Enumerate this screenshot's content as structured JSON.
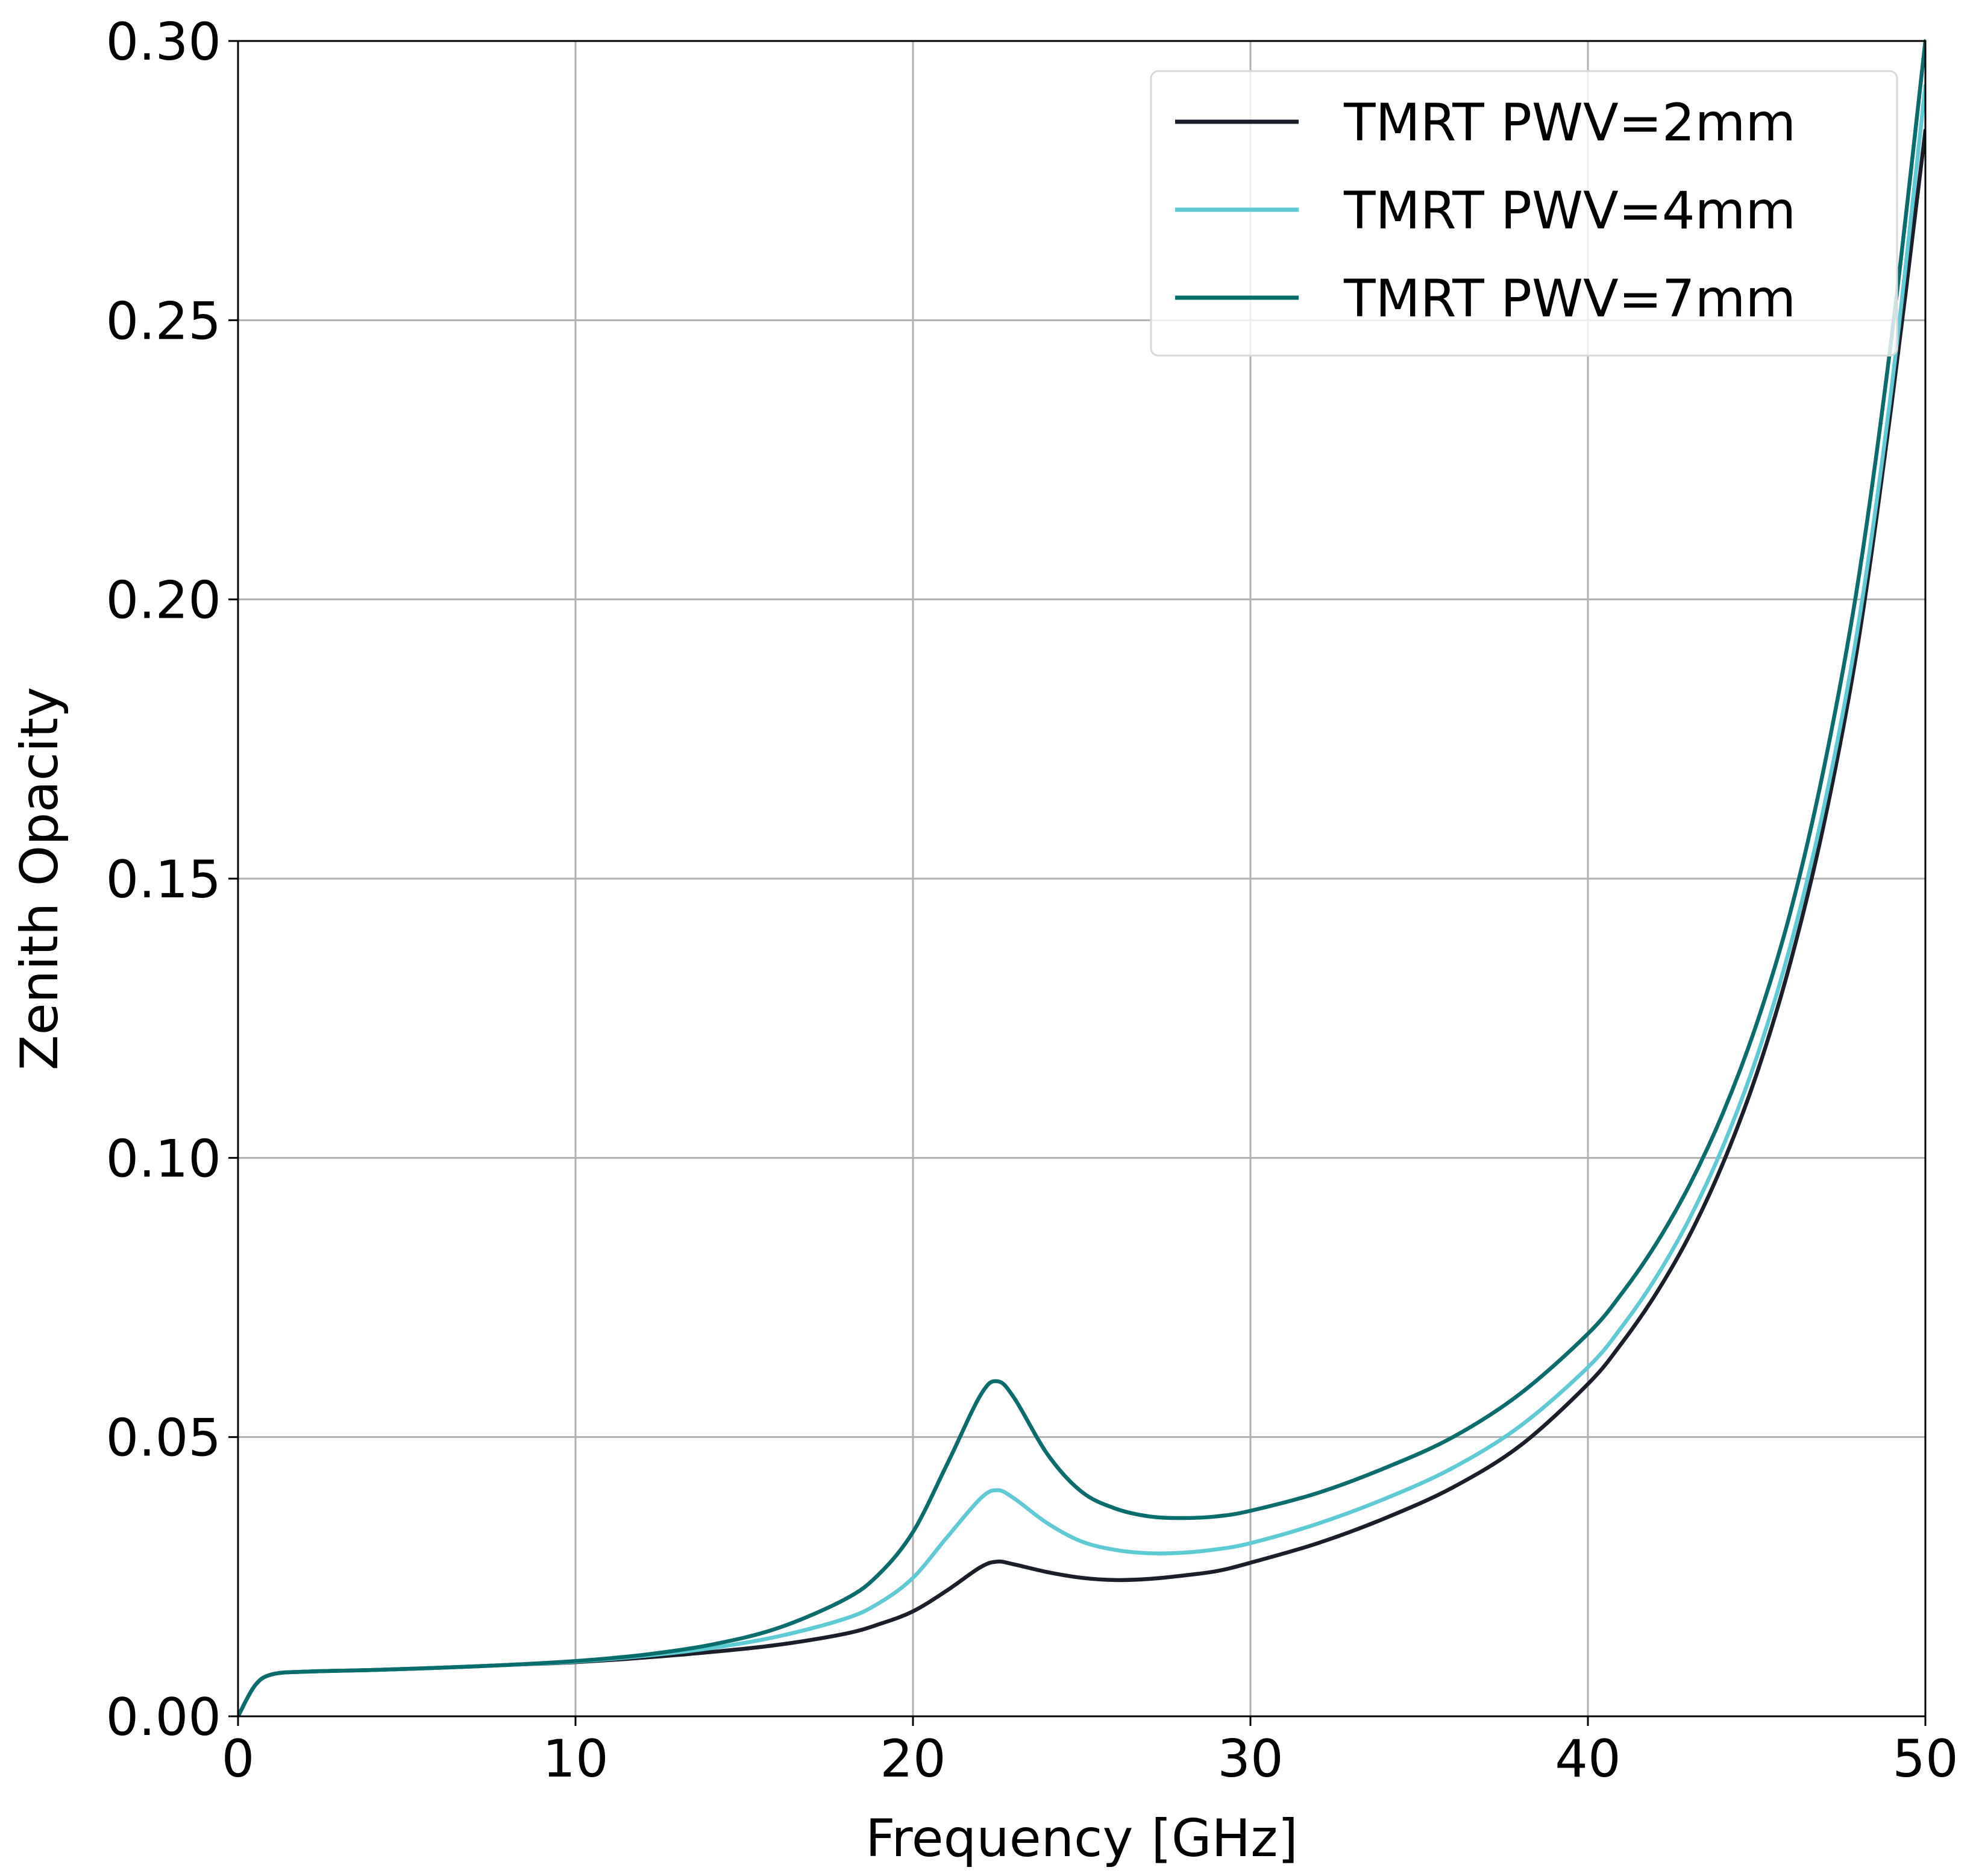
{
  "chart_data": {
    "type": "line",
    "title": "",
    "xlabel": "Frequency",
    "xlabel_unit": "[GHz]",
    "ylabel": "Zenith Opacity",
    "xlim": [
      0,
      50
    ],
    "ylim": [
      0,
      0.3
    ],
    "xticks": [
      "0",
      "10",
      "20",
      "30",
      "40",
      "50"
    ],
    "yticks": [
      "0.00",
      "0.05",
      "0.10",
      "0.15",
      "0.20",
      "0.25",
      "0.30"
    ],
    "grid": true,
    "legend_position": "top-right",
    "series": [
      {
        "name": "TMRT PWV=2mm",
        "color": "#1a1f2a",
        "x": [
          0,
          0.5,
          1,
          2,
          4,
          6,
          8,
          10,
          12,
          14,
          16,
          18,
          19,
          20,
          21,
          22,
          22.5,
          23,
          24,
          25,
          26,
          27,
          28,
          29,
          30,
          32,
          34,
          36,
          38,
          40,
          41,
          42,
          43,
          44,
          45,
          46,
          47,
          48,
          49,
          50
        ],
        "values": [
          0,
          0.0055,
          0.0075,
          0.008,
          0.0083,
          0.0087,
          0.0092,
          0.0097,
          0.0105,
          0.0115,
          0.0128,
          0.0148,
          0.0165,
          0.0188,
          0.0225,
          0.0267,
          0.0277,
          0.0272,
          0.0258,
          0.0248,
          0.0244,
          0.0246,
          0.0252,
          0.026,
          0.0275,
          0.031,
          0.0355,
          0.041,
          0.0485,
          0.0595,
          0.0668,
          0.0755,
          0.086,
          0.099,
          0.115,
          0.135,
          0.16,
          0.192,
          0.235,
          0.284
        ]
      },
      {
        "name": "TMRT PWV=4mm",
        "color": "#5ecad6",
        "x": [
          0,
          0.5,
          1,
          2,
          4,
          6,
          8,
          10,
          12,
          14,
          16,
          18,
          19,
          20,
          21,
          22,
          22.5,
          23,
          24,
          25,
          26,
          27,
          28,
          29,
          30,
          32,
          34,
          36,
          38,
          40,
          41,
          42,
          43,
          44,
          45,
          46,
          47,
          48,
          49,
          50
        ],
        "values": [
          0,
          0.0055,
          0.0075,
          0.008,
          0.0083,
          0.0087,
          0.0092,
          0.0098,
          0.0108,
          0.0122,
          0.0143,
          0.0175,
          0.0203,
          0.0248,
          0.032,
          0.039,
          0.0405,
          0.039,
          0.0345,
          0.0313,
          0.0298,
          0.0292,
          0.0293,
          0.0299,
          0.031,
          0.0345,
          0.039,
          0.0445,
          0.052,
          0.0625,
          0.0697,
          0.0784,
          0.089,
          0.102,
          0.118,
          0.138,
          0.163,
          0.195,
          0.238,
          0.292
        ]
      },
      {
        "name": "TMRT PWV=7mm",
        "color": "#0a6d6d",
        "x": [
          0,
          0.5,
          1,
          2,
          4,
          6,
          8,
          10,
          12,
          14,
          16,
          18,
          19,
          20,
          21,
          22,
          22.5,
          23,
          24,
          25,
          26,
          27,
          28,
          29,
          30,
          32,
          34,
          36,
          38,
          40,
          41,
          42,
          43,
          44,
          45,
          46,
          47,
          48,
          49,
          50
        ],
        "values": [
          0,
          0.0055,
          0.0075,
          0.008,
          0.0083,
          0.0087,
          0.0092,
          0.0099,
          0.011,
          0.0128,
          0.0158,
          0.021,
          0.0255,
          0.033,
          0.045,
          0.0575,
          0.06,
          0.057,
          0.0468,
          0.0402,
          0.0372,
          0.0358,
          0.0355,
          0.0358,
          0.0368,
          0.04,
          0.0445,
          0.05,
          0.0578,
          0.0685,
          0.0757,
          0.0844,
          0.095,
          0.108,
          0.124,
          0.144,
          0.17,
          0.203,
          0.247,
          0.3
        ]
      }
    ]
  }
}
